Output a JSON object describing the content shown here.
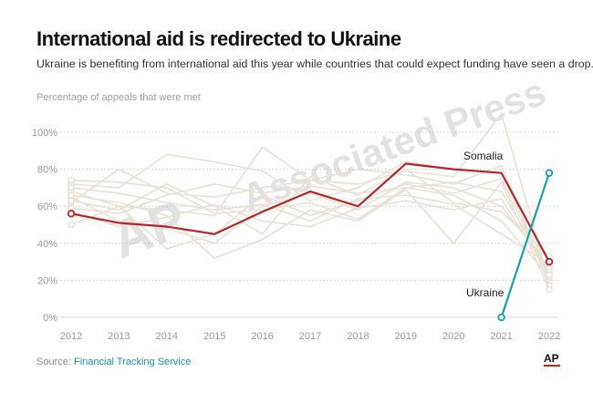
{
  "header": {
    "title": "International aid is redirected to Ukraine",
    "subtitle": "Ukraine is benefiting from international aid this year while countries that could expect funding have seen a drop."
  },
  "watermark": {
    "logo_text": "AP",
    "text": "Associated Press"
  },
  "footer": {
    "source_label": "Source:",
    "source_name": "Financial Tracking Service",
    "logo_text": "AP"
  },
  "colors": {
    "somalia": "#b3262b",
    "ukraine": "#199ea6",
    "background_lines": "#e8e1d6",
    "grid": "#d8d8d8",
    "watermark": "#bdbdbd"
  },
  "chart_data": {
    "type": "line",
    "ylabel": "Percentage of appeals that were met",
    "x": [
      2012,
      2013,
      2014,
      2015,
      2016,
      2017,
      2018,
      2019,
      2020,
      2021,
      2022
    ],
    "xticks": [
      "2012",
      "2013",
      "2014",
      "2015",
      "2016",
      "2017",
      "2018",
      "2019",
      "2020",
      "2021",
      "2022"
    ],
    "yticks": [
      "0%",
      "20%",
      "40%",
      "60%",
      "80%",
      "100%"
    ],
    "ylim": [
      0,
      100
    ],
    "grid": true,
    "series": [
      {
        "name": "Somalia",
        "highlight": true,
        "x": [
          2012,
          2013,
          2014,
          2015,
          2016,
          2017,
          2018,
          2019,
          2020,
          2021,
          2022
        ],
        "values": [
          56,
          51,
          49,
          45,
          57,
          68,
          60,
          83,
          80,
          78,
          30
        ]
      },
      {
        "name": "Ukraine",
        "highlight": true,
        "x": [
          2021,
          2022
        ],
        "values": [
          0,
          78
        ]
      }
    ],
    "background_series": [
      [
        62,
        80,
        67,
        65,
        70,
        74,
        72,
        79,
        76,
        110,
        19
      ],
      [
        72,
        70,
        88,
        84,
        79,
        63,
        70,
        84,
        80,
        78,
        24
      ],
      [
        68,
        60,
        37,
        45,
        66,
        55,
        63,
        72,
        67,
        75,
        21
      ],
      [
        74,
        73,
        70,
        56,
        58,
        62,
        53,
        70,
        73,
        68,
        25
      ],
      [
        65,
        52,
        48,
        40,
        60,
        67,
        58,
        73,
        70,
        60,
        27
      ],
      [
        59,
        56,
        66,
        72,
        67,
        71,
        67,
        70,
        66,
        52,
        22
      ],
      [
        50,
        60,
        58,
        55,
        92,
        74,
        80,
        77,
        72,
        82,
        17
      ],
      [
        70,
        67,
        62,
        58,
        61,
        52,
        64,
        66,
        61,
        45,
        29
      ],
      [
        66,
        62,
        55,
        32,
        42,
        58,
        52,
        69,
        40,
        73,
        15
      ],
      [
        63,
        58,
        72,
        60,
        45,
        76,
        66,
        80,
        62,
        57,
        33
      ],
      [
        57,
        49,
        54,
        61,
        52,
        49,
        59,
        63,
        58,
        64,
        23
      ]
    ],
    "annotations": [
      "Somalia",
      "Ukraine"
    ]
  }
}
